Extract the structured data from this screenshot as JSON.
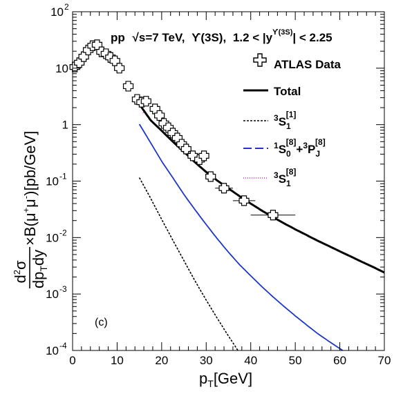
{
  "chart_data": {
    "type": "line",
    "title": "pp √s=7 TeV, ϒ(3S), 1.2 < |y^ϒ(3S)| < 2.25",
    "title_parts": {
      "pp": "pp",
      "sqrt": "√",
      "s_eq": "s=7 TeV,",
      "upsilon": "ϒ",
      "state": "(3S),",
      "range_start": "1.2 < |y",
      "y_sup": "ϒ(3S)",
      "range_end": "| < 2.25"
    },
    "xlabel": "p_T[GeV]",
    "ylabel": "d²σ/(dp_T dy) × B(μ⁺μ⁻)[pb/GeV]",
    "xlabel_parts": {
      "p": "p",
      "sub": "T",
      "rest": "[GeV]"
    },
    "ylabel_parts": {
      "num_d": "d",
      "num_sup": "2",
      "num_sigma": "σ",
      "den_dp": "dp",
      "den_sub": "T",
      "den_dy": "dy",
      "times": "×B(μ",
      "sup_plus": "+",
      "mu2": "μ",
      "sup_minus": "-",
      "rest": ")[pb/GeV]"
    },
    "panel_label": "(c)",
    "xlim": [
      0,
      70
    ],
    "ylim": [
      0.0001,
      100
    ],
    "yscale": "log",
    "grid": false,
    "legend_position": "top-right",
    "x_ticks": [
      0,
      10,
      20,
      30,
      40,
      50,
      60,
      70
    ],
    "y_ticks": [
      {
        "value": 100,
        "base": "10",
        "exp": "2"
      },
      {
        "value": 10,
        "base": "10",
        "exp": ""
      },
      {
        "value": 1,
        "base": "1",
        "exp": ""
      },
      {
        "value": 0.1,
        "base": "10",
        "exp": "-1"
      },
      {
        "value": 0.01,
        "base": "10",
        "exp": "-2"
      },
      {
        "value": 0.001,
        "base": "10",
        "exp": "-3"
      },
      {
        "value": 0.0001,
        "base": "10",
        "exp": "-4"
      }
    ],
    "legend": [
      {
        "key": "data",
        "label": "ATLAS Data",
        "marker": "open-cross",
        "color": "#000000"
      },
      {
        "key": "total",
        "label": "Total",
        "line": "solid",
        "color": "#000000"
      },
      {
        "key": "s1",
        "label_base": "S",
        "pre": "3",
        "sub": "1",
        "sup": "[1]",
        "line": "dashed",
        "color": "#000000"
      },
      {
        "key": "s0p",
        "label_base": "S",
        "pre": "1",
        "sub": "0",
        "sup": "[8]",
        "plus": "+",
        "pre2": "3",
        "base2": "P",
        "sub2": "J",
        "sup2": "[8]",
        "line": "long-dash",
        "color": "#1a35c8"
      },
      {
        "key": "s18",
        "label_base": "S",
        "pre": "3",
        "sub": "1",
        "sup": "[8]",
        "line": "dotted",
        "color": "#d627d6"
      }
    ],
    "series": [
      {
        "name": "ATLAS Data",
        "kind": "points",
        "color": "#000000",
        "points": [
          {
            "x": 0.5,
            "y": 10.5,
            "xerr": 0.5
          },
          {
            "x": 1.5,
            "y": 12.5,
            "xerr": 0.5
          },
          {
            "x": 2.5,
            "y": 16.0,
            "xerr": 0.5
          },
          {
            "x": 3.5,
            "y": 21.0,
            "xerr": 0.5
          },
          {
            "x": 4.5,
            "y": 25.0,
            "xerr": 0.5
          },
          {
            "x": 5.5,
            "y": 26.0,
            "xerr": 0.5
          },
          {
            "x": 6.5,
            "y": 19.5,
            "xerr": 0.5
          },
          {
            "x": 7.5,
            "y": 18.0,
            "xerr": 0.5
          },
          {
            "x": 8.5,
            "y": 15.5,
            "xerr": 0.5
          },
          {
            "x": 9.5,
            "y": 13.5,
            "xerr": 0.5
          },
          {
            "x": 10.5,
            "y": 10.0,
            "xerr": 0.5
          },
          {
            "x": 12.5,
            "y": 4.8,
            "xerr": 1.0
          },
          {
            "x": 14.5,
            "y": 2.8,
            "xerr": 1.0
          },
          {
            "x": 15.5,
            "y": 2.5,
            "xerr": 0.5
          },
          {
            "x": 16.5,
            "y": 2.6,
            "xerr": 0.5
          },
          {
            "x": 18.5,
            "y": 1.9,
            "xerr": 1.0
          },
          {
            "x": 19.5,
            "y": 1.45,
            "xerr": 0.5
          },
          {
            "x": 20.5,
            "y": 1.05,
            "xerr": 0.5
          },
          {
            "x": 21.5,
            "y": 0.88,
            "xerr": 0.5
          },
          {
            "x": 22.5,
            "y": 0.71,
            "xerr": 0.5
          },
          {
            "x": 23.5,
            "y": 0.58,
            "xerr": 0.5
          },
          {
            "x": 24.5,
            "y": 0.45,
            "xerr": 0.5
          },
          {
            "x": 25.5,
            "y": 0.37,
            "xerr": 0.5
          },
          {
            "x": 27.0,
            "y": 0.28,
            "xerr": 1.0
          },
          {
            "x": 28.5,
            "y": 0.24,
            "xerr": 0.5
          },
          {
            "x": 29.5,
            "y": 0.28,
            "xerr": 0.5
          },
          {
            "x": 31.0,
            "y": 0.12,
            "xerr": 1.0
          },
          {
            "x": 34.0,
            "y": 0.075,
            "xerr": 2.0
          },
          {
            "x": 38.5,
            "y": 0.045,
            "xerr": 2.5
          },
          {
            "x": 45.0,
            "y": 0.025,
            "xerr": 5.0
          }
        ]
      },
      {
        "name": "Total",
        "kind": "line",
        "style": "solid",
        "color": "#000000",
        "points": [
          [
            15,
            2.3
          ],
          [
            17.5,
            1.2
          ],
          [
            20,
            0.78
          ],
          [
            22.5,
            0.5
          ],
          [
            25,
            0.33
          ],
          [
            27.5,
            0.215
          ],
          [
            30,
            0.145
          ],
          [
            32.5,
            0.102
          ],
          [
            35,
            0.074
          ],
          [
            37.5,
            0.054
          ],
          [
            40,
            0.04
          ],
          [
            42.5,
            0.03
          ],
          [
            45,
            0.023
          ],
          [
            47.5,
            0.0178
          ],
          [
            50,
            0.014
          ],
          [
            52.5,
            0.0111
          ],
          [
            55,
            0.0088
          ],
          [
            57.5,
            0.0071
          ],
          [
            60,
            0.0057
          ],
          [
            62.5,
            0.0046
          ],
          [
            65,
            0.0037
          ],
          [
            67.5,
            0.003
          ],
          [
            70,
            0.0024
          ]
        ]
      },
      {
        "name": "3S1[1]",
        "kind": "line",
        "style": "dashed",
        "color": "#000000",
        "points": [
          [
            15,
            0.115
          ],
          [
            17.5,
            0.05
          ],
          [
            20,
            0.021
          ],
          [
            22.5,
            0.009
          ],
          [
            25,
            0.0039
          ],
          [
            27.5,
            0.0017
          ],
          [
            30,
            0.00078
          ],
          [
            32.5,
            0.00037
          ],
          [
            35,
            0.00018
          ],
          [
            37.5,
            9e-05
          ]
        ]
      },
      {
        "name": "1S0[8]+3PJ[8]",
        "kind": "line",
        "style": "long-dash",
        "color": "#1a35c8",
        "points": [
          [
            15,
            1.02
          ],
          [
            17.5,
            0.48
          ],
          [
            20,
            0.225
          ],
          [
            22.5,
            0.115
          ],
          [
            25,
            0.058
          ],
          [
            27.5,
            0.031
          ],
          [
            30,
            0.017
          ],
          [
            32.5,
            0.0095
          ],
          [
            35,
            0.0055
          ],
          [
            37.5,
            0.0033
          ],
          [
            40,
            0.0021
          ],
          [
            42.5,
            0.00135
          ],
          [
            45,
            0.00089
          ],
          [
            47.5,
            0.0006
          ],
          [
            50,
            0.00041
          ],
          [
            52.5,
            0.000285
          ],
          [
            55,
            0.0002
          ],
          [
            57.5,
            0.000146
          ],
          [
            60,
            0.000108
          ],
          [
            62.5,
            8e-05
          ],
          [
            64.5,
            6.4e-05
          ]
        ]
      },
      {
        "name": "3S1[8]",
        "kind": "line",
        "style": "dotted",
        "color": "#d627d6",
        "points": [
          [
            15.8,
            1.65
          ],
          [
            16.2,
            1.55
          ]
        ]
      }
    ]
  }
}
